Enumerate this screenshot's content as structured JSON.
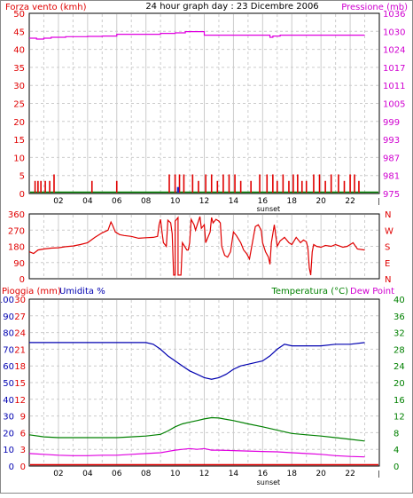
{
  "chart_data": [
    {
      "type": "bar",
      "panel": "wind-pressure",
      "title": "24 hour graph day : 23 Dicembre 2006",
      "ylabel_left": "Forza vento (kmh)",
      "ylabel_right": "Pressione (mb)",
      "ylim_left": [
        0,
        50
      ],
      "ylim_right": [
        975,
        1036
      ],
      "yticks_left": [
        "0",
        "5",
        "10",
        "15",
        "20",
        "25",
        "30",
        "35",
        "40",
        "45",
        "50"
      ],
      "yticks_right": [
        "975",
        "981",
        "987",
        "993",
        "999",
        "1005",
        "1011",
        "1017",
        "1024",
        "1030",
        "1036"
      ],
      "xticks": [
        "02",
        "04",
        "06",
        "08",
        "10",
        "12",
        "14",
        "16",
        "18",
        "20",
        "22"
      ],
      "x_annotation": "sunset",
      "wind_bars": {
        "name": "Forza vento (kmh)",
        "x": [
          0.4,
          0.6,
          0.8,
          1.1,
          1.4,
          1.7,
          4.3,
          6.0,
          9.6,
          10.0,
          10.3,
          10.6,
          11.2,
          11.6,
          12.1,
          12.5,
          12.9,
          13.3,
          13.7,
          14.1,
          14.5,
          15.2,
          15.8,
          16.3,
          16.7,
          17.0,
          17.4,
          17.8,
          18.1,
          18.4,
          18.7,
          19.0,
          19.5,
          19.9,
          20.3,
          20.7,
          21.2,
          21.6,
          22.0,
          22.3,
          22.6
        ],
        "values": [
          3.5,
          3.5,
          3.5,
          3.5,
          3.5,
          5.3,
          3.5,
          3.5,
          5.3,
          5.3,
          5.3,
          5.3,
          5.3,
          3.5,
          5.3,
          5.3,
          3.5,
          5.3,
          5.3,
          5.3,
          3.5,
          3.5,
          5.3,
          5.3,
          5.3,
          3.5,
          5.3,
          3.5,
          5.3,
          5.3,
          3.5,
          3.5,
          5.3,
          5.3,
          3.5,
          5.3,
          5.3,
          3.5,
          5.3,
          5.3,
          3.5
        ],
        "color": "#e00000"
      },
      "wind_gust_marker": {
        "x": 10.2,
        "value": 1.8,
        "color": "#2020c0"
      },
      "pressure_line": {
        "name": "Pressione (mb)",
        "x": [
          0.0,
          0.5,
          0.5,
          1.0,
          1.0,
          1.5,
          1.5,
          2.5,
          2.5,
          4.0,
          4.0,
          5.0,
          5.0,
          6.0,
          6.0,
          9.0,
          9.0,
          10.0,
          10.0,
          10.7,
          10.7,
          12.0,
          12.0,
          16.5,
          16.5,
          16.7,
          16.7,
          17.2,
          17.2,
          18.0,
          18.0,
          23.0
        ],
        "values": [
          1027.6,
          1027.6,
          1027.3,
          1027.3,
          1027.6,
          1027.6,
          1027.9,
          1027.9,
          1028.1,
          1028.1,
          1028.2,
          1028.2,
          1028.3,
          1028.3,
          1028.9,
          1028.9,
          1029.2,
          1029.2,
          1029.4,
          1029.4,
          1029.8,
          1029.8,
          1028.6,
          1028.6,
          1027.9,
          1027.9,
          1028.3,
          1028.3,
          1028.6,
          1028.6,
          1028.6,
          1028.6
        ],
        "color": "#e000e0"
      },
      "ground_line_color": "#008000"
    },
    {
      "type": "line",
      "panel": "wind-direction",
      "yticks_left": [
        "0",
        "90",
        "180",
        "270",
        "360"
      ],
      "ylim": [
        0,
        360
      ],
      "yticks_right": [
        "N",
        "E",
        "S",
        "W",
        "N"
      ],
      "series": [
        {
          "x": [
            0.0,
            0.3,
            0.6,
            1.0,
            1.5,
            2.0,
            2.5,
            3.0,
            3.5,
            4.0,
            4.5,
            5.0,
            5.4,
            5.6,
            5.7,
            5.9,
            6.2,
            6.5,
            7.0,
            7.5,
            8.0,
            8.5,
            8.8,
            8.9,
            9.0,
            9.1,
            9.2,
            9.4,
            9.5,
            9.7,
            9.8,
            9.9,
            10.0,
            10.0,
            10.2,
            10.2,
            10.4,
            10.5,
            10.8,
            10.9,
            11.0,
            11.1,
            11.3,
            11.4,
            11.6,
            11.7,
            11.8,
            12.0,
            12.1,
            12.4,
            12.5,
            12.6,
            12.8,
            13.0,
            13.1,
            13.2,
            13.4,
            13.6,
            13.8,
            14.0,
            14.2,
            14.5,
            14.7,
            14.9,
            15.1,
            15.3,
            15.5,
            15.7,
            15.9,
            16.0,
            16.2,
            16.4,
            16.5,
            16.6,
            16.8,
            17.0,
            17.2,
            17.5,
            17.8,
            18.0,
            18.3,
            18.6,
            18.8,
            19.0,
            19.1,
            19.2,
            19.3,
            19.4,
            19.5,
            19.7,
            20.0,
            20.3,
            20.7,
            21.0,
            21.5,
            21.8,
            22.0,
            22.2,
            22.5,
            23.0
          ],
          "values": [
            150,
            140,
            160,
            165,
            170,
            172,
            178,
            182,
            190,
            200,
            230,
            255,
            270,
            315,
            300,
            260,
            245,
            240,
            235,
            225,
            228,
            230,
            235,
            300,
            330,
            260,
            200,
            180,
            325,
            310,
            250,
            20,
            20,
            320,
            340,
            20,
            20,
            200,
            160,
            160,
            200,
            330,
            300,
            270,
            320,
            345,
            280,
            300,
            200,
            260,
            340,
            310,
            330,
            320,
            310,
            180,
            130,
            120,
            150,
            260,
            240,
            200,
            160,
            140,
            110,
            200,
            290,
            300,
            270,
            200,
            150,
            120,
            80,
            200,
            300,
            180,
            210,
            230,
            200,
            190,
            230,
            200,
            215,
            205,
            170,
            60,
            20,
            150,
            190,
            180,
            175,
            185,
            180,
            190,
            175,
            180,
            190,
            200,
            165,
            160
          ],
          "color": "#e00000"
        }
      ]
    },
    {
      "type": "line",
      "panel": "rain-humidity-temp",
      "ylabel_left_1": "Pioggia (mm)",
      "ylabel_left_2": "Umidita %",
      "ylabel_right_1": "Temperatura (°C)",
      "ylabel_right_2": "Dew Point",
      "yticks_humidity": [
        "0",
        "10",
        "20",
        "30",
        "40",
        "50",
        "60",
        "70",
        "80",
        "90",
        "100"
      ],
      "yticks_rain": [
        "0",
        "3",
        "6",
        "9",
        "12",
        "15",
        "18",
        "21",
        "24",
        "27",
        "30"
      ],
      "yticks_temperature": [
        "0",
        "4",
        "8",
        "12",
        "16",
        "20",
        "24",
        "28",
        "32",
        "36",
        "40"
      ],
      "ylim_humidity": [
        0,
        100
      ],
      "ylim_temperature": [
        0,
        40
      ],
      "xticks": [
        "02",
        "04",
        "06",
        "08",
        "10",
        "12",
        "14",
        "16",
        "18",
        "20",
        "22"
      ],
      "x_annotation": "sunset",
      "series": [
        {
          "name": "Umidita %",
          "x": [
            0.0,
            1.0,
            2.0,
            3.0,
            4.0,
            5.0,
            6.0,
            7.0,
            8.0,
            8.5,
            9.0,
            9.5,
            10.0,
            10.5,
            11.0,
            11.5,
            12.0,
            12.5,
            13.0,
            13.5,
            14.0,
            14.5,
            15.0,
            15.5,
            16.0,
            16.5,
            17.0,
            17.5,
            18.0,
            19.0,
            20.0,
            21.0,
            22.0,
            23.0
          ],
          "values": [
            74,
            74,
            74,
            74,
            74,
            74,
            74,
            74,
            74,
            73,
            70,
            66,
            63,
            60,
            57,
            55,
            53,
            52,
            53,
            55,
            58,
            60,
            61,
            62,
            63,
            66,
            70,
            73,
            72,
            72,
            72,
            73,
            73,
            74
          ],
          "color": "#0000b0"
        },
        {
          "name": "Temperatura (°C)",
          "x": [
            0.0,
            1.0,
            2.0,
            3.0,
            4.0,
            5.0,
            6.0,
            7.0,
            8.0,
            9.0,
            9.5,
            10.0,
            10.5,
            11.0,
            11.5,
            12.0,
            12.5,
            13.0,
            13.5,
            14.0,
            15.0,
            16.0,
            17.0,
            18.0,
            19.0,
            20.0,
            21.0,
            22.0,
            23.0
          ],
          "values": [
            7.5,
            7.0,
            6.8,
            6.8,
            6.8,
            6.8,
            6.8,
            7.0,
            7.2,
            7.6,
            8.4,
            9.4,
            10.1,
            10.5,
            10.9,
            11.3,
            11.6,
            11.5,
            11.2,
            10.9,
            10.1,
            9.4,
            8.6,
            7.8,
            7.5,
            7.2,
            6.8,
            6.4,
            6.0
          ],
          "color": "#008000"
        },
        {
          "name": "Dew Point",
          "x": [
            0.0,
            1.0,
            2.0,
            3.0,
            4.0,
            5.0,
            6.0,
            7.0,
            8.0,
            9.0,
            10.0,
            10.5,
            11.0,
            11.5,
            12.0,
            12.5,
            13.0,
            14.0,
            15.0,
            16.0,
            17.0,
            18.0,
            19.0,
            20.0,
            21.0,
            22.0,
            23.0
          ],
          "values": [
            3.0,
            2.8,
            2.6,
            2.5,
            2.5,
            2.6,
            2.6,
            2.8,
            3.0,
            3.2,
            3.8,
            4.0,
            4.2,
            4.0,
            4.2,
            3.8,
            3.8,
            3.7,
            3.6,
            3.5,
            3.4,
            3.2,
            3.0,
            2.8,
            2.5,
            2.3,
            2.2
          ],
          "color": "#e000e0"
        },
        {
          "name": "Pioggia (mm)",
          "x": [
            0.0,
            23.0
          ],
          "values": [
            0,
            0
          ],
          "color": "#e00000"
        }
      ]
    }
  ]
}
